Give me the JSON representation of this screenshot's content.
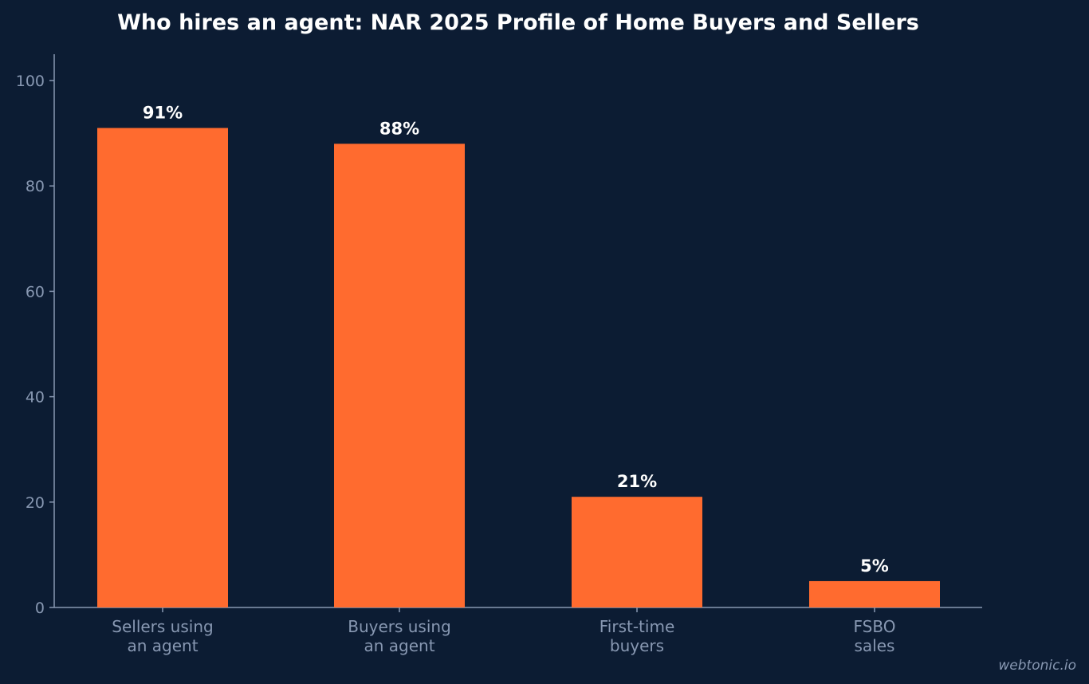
{
  "chart_data": {
    "type": "bar",
    "title": "Who hires an agent: NAR 2025 Profile of Home Buyers and Sellers",
    "xlabel": "",
    "ylabel": "",
    "categories": [
      [
        "Sellers using",
        "an agent"
      ],
      [
        "Buyers using",
        "an agent"
      ],
      [
        "First-time",
        "buyers"
      ],
      [
        "FSBO",
        "sales"
      ]
    ],
    "values": [
      91,
      88,
      21,
      5
    ],
    "data_labels": [
      "91%",
      "88%",
      "21%",
      "5%"
    ],
    "yticks": [
      0,
      20,
      40,
      60,
      80,
      100
    ],
    "ylim": [
      0,
      105
    ],
    "grid": false,
    "bar_color": "#ff6b2f",
    "background": "#0c1c33"
  },
  "watermark": "webtonic.io"
}
